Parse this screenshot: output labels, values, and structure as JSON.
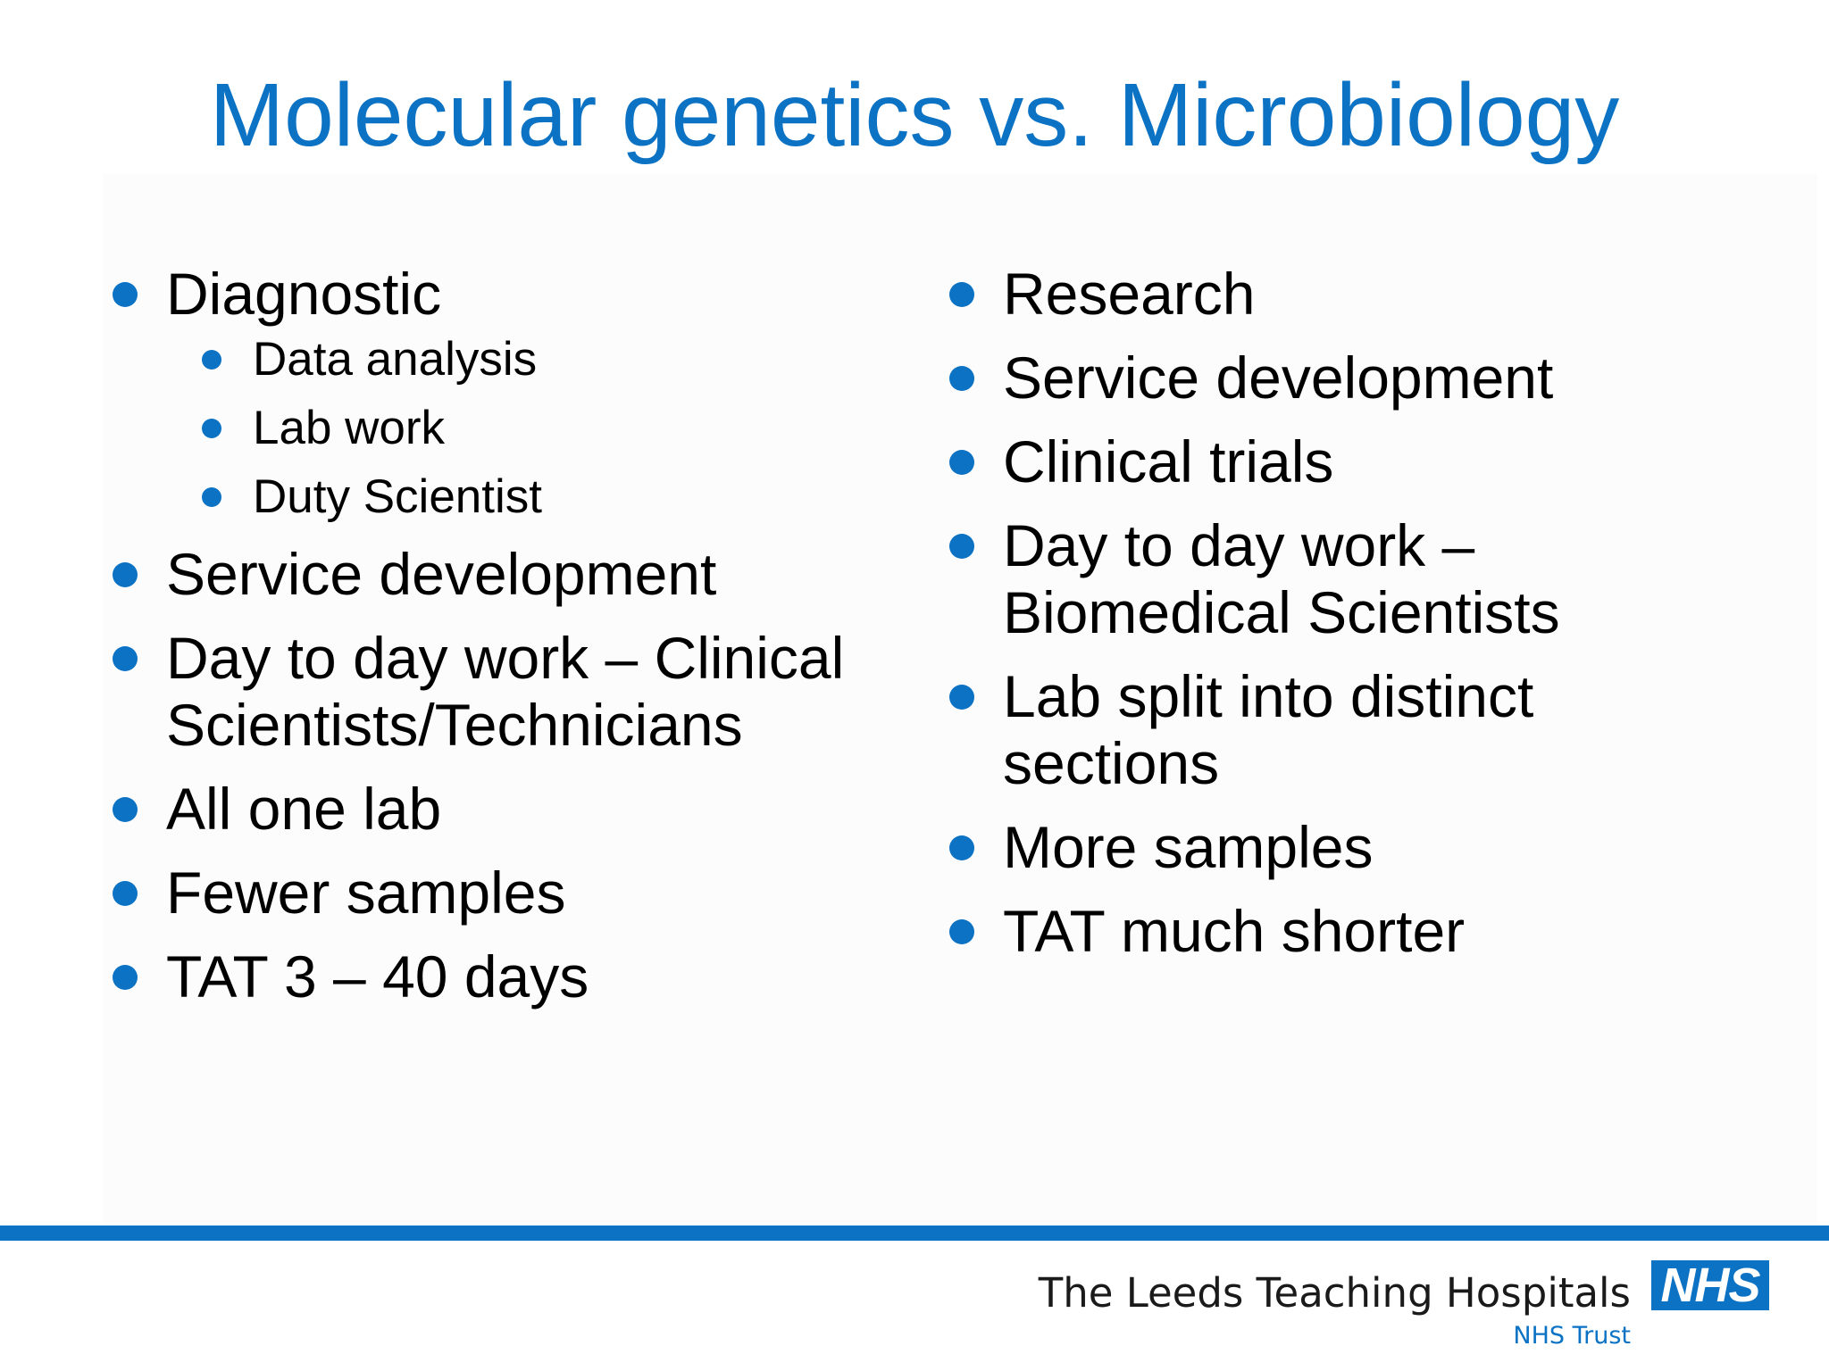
{
  "slide": {
    "title": "Molecular genetics vs. Microbiology",
    "left_column": {
      "items": [
        {
          "text": "Diagnostic",
          "sub_items": [
            "Data analysis",
            "Lab work",
            "Duty Scientist"
          ]
        },
        {
          "text": "Service development"
        },
        {
          "text": "Day to day work – Clinical",
          "text2": "Scientists/Technicians"
        },
        {
          "text": "All one lab"
        },
        {
          "text": "Fewer samples"
        },
        {
          "text": "TAT 3 – 40 days"
        }
      ]
    },
    "right_column": {
      "items": [
        {
          "text": "Research"
        },
        {
          "text": "Service development"
        },
        {
          "text": "Clinical trials"
        },
        {
          "text": "Day to day work –",
          "text2": "Biomedical Scientists"
        },
        {
          "text": "Lab split into distinct",
          "text2": "sections"
        },
        {
          "text": "More samples"
        },
        {
          "text": "TAT much shorter"
        }
      ]
    }
  },
  "footer": {
    "trust_name": "The Leeds Teaching Hospitals",
    "trust_subtitle": "NHS Trust",
    "logo_text": "NHS"
  },
  "colors": {
    "accent": "#0b72c4",
    "text": "#000000",
    "background": "#ffffff"
  }
}
